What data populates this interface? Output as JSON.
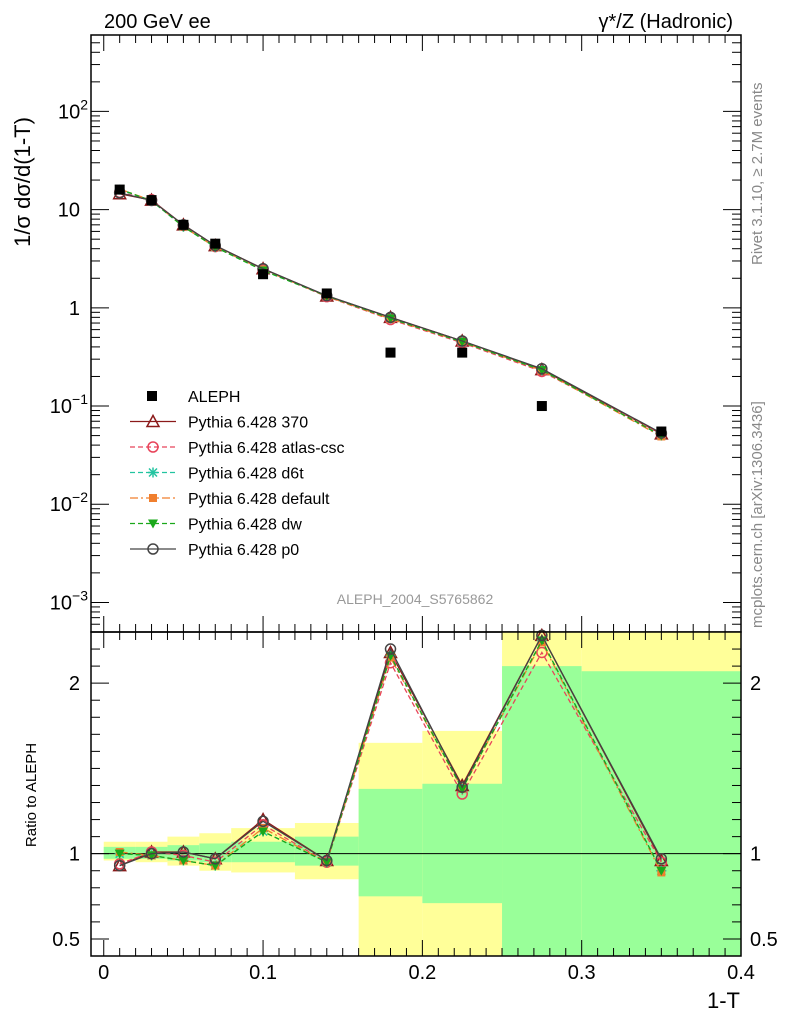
{
  "header": {
    "left": "200 GeV ee",
    "right": "γ*/Z (Hadronic)"
  },
  "side_text": {
    "rivet": "Rivet 3.1.10, ≥ 2.7M events",
    "mcplots": "mcplots.cern.ch [arXiv:1306.3436]"
  },
  "analysis_label": "ALEPH_2004_S5765862",
  "chart_data": [
    {
      "type": "scatter",
      "ylabel": "1/σ  dσ/d(1-T)",
      "yscale": "log",
      "ylim": [
        0.0005,
        600
      ],
      "xlim": [
        -0.008,
        0.4
      ],
      "yticks": [
        {
          "value": 100,
          "mant": "10",
          "exp": "2"
        },
        {
          "value": 10,
          "mant": "10",
          "exp": ""
        },
        {
          "value": 1,
          "mant": "1",
          "exp": ""
        },
        {
          "value": 0.1,
          "mant": "10",
          "exp": "−1"
        },
        {
          "value": 0.01,
          "mant": "10",
          "exp": "−2"
        },
        {
          "value": 0.001,
          "mant": "10",
          "exp": "−3"
        }
      ],
      "data": {
        "name": "ALEPH",
        "x": [
          0.01,
          0.03,
          0.05,
          0.07,
          0.1,
          0.14,
          0.18,
          0.225,
          0.275,
          0.35
        ],
        "y": [
          16.0,
          12.5,
          7.0,
          4.5,
          2.2,
          1.4,
          0.35,
          0.35,
          0.1,
          0.055
        ]
      },
      "series": [
        {
          "name": "Pythia 6.428 370",
          "color": "#8b1a1a",
          "marker": "triangle-open",
          "dash": "",
          "x": [
            0.01,
            0.03,
            0.05,
            0.07,
            0.1,
            0.14,
            0.18,
            0.225,
            0.275,
            0.35
          ],
          "y": [
            14.5,
            12.5,
            7.0,
            4.3,
            2.5,
            1.32,
            0.8,
            0.46,
            0.235,
            0.052
          ]
        },
        {
          "name": "Pythia 6.428 atlas-csc",
          "color": "#e8445a",
          "marker": "circle-open",
          "dash": "5,3",
          "x": [
            0.01,
            0.03,
            0.05,
            0.07,
            0.1,
            0.14,
            0.18,
            0.225,
            0.275,
            0.35
          ],
          "y": [
            15.0,
            12.6,
            6.9,
            4.2,
            2.45,
            1.3,
            0.76,
            0.44,
            0.225,
            0.052
          ]
        },
        {
          "name": "Pythia 6.428 d6t",
          "color": "#22c4a0",
          "marker": "star",
          "dash": "5,3",
          "x": [
            0.01,
            0.03,
            0.05,
            0.07,
            0.1,
            0.14,
            0.18,
            0.225,
            0.275,
            0.35
          ],
          "y": [
            16.0,
            12.3,
            6.7,
            4.15,
            2.4,
            1.32,
            0.78,
            0.45,
            0.232,
            0.05
          ]
        },
        {
          "name": "Pythia 6.428 default",
          "color": "#f07f2e",
          "marker": "square",
          "dash": "8,3,2,3",
          "x": [
            0.01,
            0.03,
            0.05,
            0.07,
            0.1,
            0.14,
            0.18,
            0.225,
            0.275,
            0.35
          ],
          "y": [
            16.2,
            12.4,
            6.7,
            4.15,
            2.45,
            1.31,
            0.77,
            0.45,
            0.23,
            0.049
          ]
        },
        {
          "name": "Pythia 6.428 dw",
          "color": "#1aa81a",
          "marker": "triangle-down",
          "dash": "5,3",
          "x": [
            0.01,
            0.03,
            0.05,
            0.07,
            0.1,
            0.14,
            0.18,
            0.225,
            0.275,
            0.35
          ],
          "y": [
            16.2,
            12.3,
            6.7,
            4.15,
            2.4,
            1.32,
            0.78,
            0.45,
            0.232,
            0.05
          ]
        },
        {
          "name": "Pythia 6.428 p0",
          "color": "#444444",
          "marker": "circle-open",
          "dash": "",
          "x": [
            0.01,
            0.03,
            0.05,
            0.07,
            0.1,
            0.14,
            0.18,
            0.225,
            0.275,
            0.35
          ],
          "y": [
            14.8,
            12.4,
            7.0,
            4.3,
            2.5,
            1.33,
            0.8,
            0.46,
            0.24,
            0.053
          ]
        }
      ],
      "legend_position": "bottom-left"
    },
    {
      "type": "line",
      "ylabel": "Ratio to ALEPH",
      "xlabel": "1-T",
      "ylim": [
        0.4,
        2.3
      ],
      "xlim": [
        -0.008,
        0.4
      ],
      "xticks": [
        {
          "value": 0,
          "label": "0"
        },
        {
          "value": 0.1,
          "label": "0.1"
        },
        {
          "value": 0.2,
          "label": "0.2"
        },
        {
          "value": 0.3,
          "label": "0.3"
        },
        {
          "value": 0.4,
          "label": "0.4"
        }
      ],
      "yticks": [
        {
          "value": 0.5,
          "label": "0.5"
        },
        {
          "value": 1,
          "label": "1"
        },
        {
          "value": 2,
          "label": "2"
        }
      ],
      "bands": [
        {
          "x0": 0.0,
          "x1": 0.02,
          "y0": 0.96,
          "y1": 1.07,
          "g0": 0.97,
          "g1": 1.04
        },
        {
          "x0": 0.02,
          "x1": 0.04,
          "y0": 0.95,
          "y1": 1.07,
          "g0": 0.97,
          "g1": 1.04
        },
        {
          "x0": 0.04,
          "x1": 0.06,
          "y0": 0.93,
          "y1": 1.1,
          "g0": 0.96,
          "g1": 1.05
        },
        {
          "x0": 0.06,
          "x1": 0.08,
          "y0": 0.9,
          "y1": 1.12,
          "g0": 0.95,
          "g1": 1.06
        },
        {
          "x0": 0.08,
          "x1": 0.12,
          "y0": 0.89,
          "y1": 1.15,
          "g0": 0.95,
          "g1": 1.07
        },
        {
          "x0": 0.12,
          "x1": 0.16,
          "y0": 0.85,
          "y1": 1.18,
          "g0": 0.93,
          "g1": 1.1
        },
        {
          "x0": 0.16,
          "x1": 0.2,
          "y0": 0.38,
          "y1": 1.65,
          "g0": 0.75,
          "g1": 1.38
        },
        {
          "x0": 0.2,
          "x1": 0.25,
          "y0": 0.37,
          "y1": 1.72,
          "g0": 0.71,
          "g1": 1.41
        },
        {
          "x0": 0.25,
          "x1": 0.3,
          "y0": 0.4,
          "y1": 2.3,
          "g0": 0.4,
          "g1": 2.1
        },
        {
          "x0": 0.3,
          "x1": 0.4,
          "y0": 0.4,
          "y1": 2.3,
          "g0": 0.4,
          "g1": 2.07
        }
      ],
      "series": [
        {
          "name": "Pythia 6.428 370",
          "y": [
            0.93,
            1.01,
            1.01,
            0.97,
            1.2,
            0.96,
            2.18,
            1.4,
            2.3,
            0.96
          ]
        },
        {
          "name": "Pythia 6.428 atlas-csc",
          "y": [
            0.94,
            1.01,
            0.99,
            0.95,
            1.17,
            0.95,
            2.12,
            1.35,
            2.18,
            0.95
          ]
        },
        {
          "name": "Pythia 6.428 d6t",
          "y": [
            1.0,
            0.99,
            0.96,
            0.93,
            1.13,
            0.95,
            2.16,
            1.38,
            2.25,
            0.9
          ]
        },
        {
          "name": "Pythia 6.428 default",
          "y": [
            1.01,
            0.99,
            0.96,
            0.93,
            1.15,
            0.95,
            2.15,
            1.38,
            2.24,
            0.89
          ]
        },
        {
          "name": "Pythia 6.428 dw",
          "y": [
            1.0,
            0.99,
            0.96,
            0.93,
            1.13,
            0.95,
            2.16,
            1.38,
            2.25,
            0.9
          ]
        },
        {
          "name": "Pythia 6.428 p0",
          "y": [
            0.93,
            1.0,
            1.01,
            0.97,
            1.19,
            0.96,
            2.2,
            1.39,
            2.32,
            0.97
          ]
        }
      ],
      "reference_line": 1
    }
  ]
}
